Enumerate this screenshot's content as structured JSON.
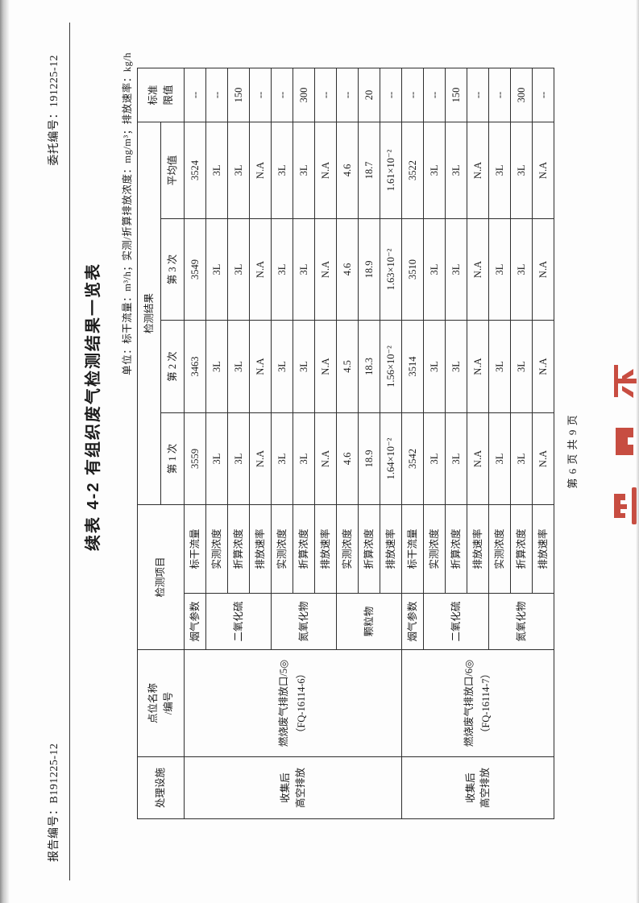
{
  "page": {
    "report_no": "报告编号：B191225-12",
    "client_no": "委托编号：191225-12",
    "title": "续表 4-2  有组织废气检测结果一览表",
    "unit_line": "单位：标干流量：m³/h；实测/折算排放浓度：mg/m³；排放速率：kg/h",
    "footer": "第 6 页 共 9 页",
    "stamp_color": "#c23a2d"
  },
  "table": {
    "header": {
      "facility": "处理设施",
      "point": "点位名称\n/编号",
      "item": "检测项目",
      "result": "检测结果",
      "runs": [
        "第 1 次",
        "第 2 次",
        "第 3 次",
        "平均值"
      ],
      "limit": "标准\n限值"
    },
    "points": [
      {
        "facility": "收集后\n高空排放",
        "name": "燃烧废气排放口/5◎\n（FQ-16114-6）",
        "groups": [
          {
            "name": "烟气参数",
            "rows": [
              {
                "metric": "标干流量",
                "values": [
                  "3559",
                  "3463",
                  "3549",
                  "3524"
                ],
                "limit": "--"
              }
            ]
          },
          {
            "name": "二氧化硫",
            "rows": [
              {
                "metric": "实测浓度",
                "values": [
                  "3L",
                  "3L",
                  "3L",
                  "3L"
                ],
                "limit": "--"
              },
              {
                "metric": "折算浓度",
                "values": [
                  "3L",
                  "3L",
                  "3L",
                  "3L"
                ],
                "limit": "150"
              },
              {
                "metric": "排放速率",
                "values": [
                  "N.A",
                  "N.A",
                  "N.A",
                  "N.A"
                ],
                "limit": "--"
              }
            ]
          },
          {
            "name": "氮氧化物",
            "rows": [
              {
                "metric": "实测浓度",
                "values": [
                  "3L",
                  "3L",
                  "3L",
                  "3L"
                ],
                "limit": "--"
              },
              {
                "metric": "折算浓度",
                "values": [
                  "3L",
                  "3L",
                  "3L",
                  "3L"
                ],
                "limit": "300"
              },
              {
                "metric": "排放速率",
                "values": [
                  "N.A",
                  "N.A",
                  "N.A",
                  "N.A"
                ],
                "limit": "--"
              }
            ]
          },
          {
            "name": "颗粒物",
            "rows": [
              {
                "metric": "实测浓度",
                "values": [
                  "4.6",
                  "4.5",
                  "4.6",
                  "4.6"
                ],
                "limit": "--"
              },
              {
                "metric": "折算浓度",
                "values": [
                  "18.9",
                  "18.3",
                  "18.9",
                  "18.7"
                ],
                "limit": "20"
              },
              {
                "metric": "排放速率",
                "values": [
                  "1.64×10⁻²",
                  "1.56×10⁻²",
                  "1.63×10⁻²",
                  "1.61×10⁻²"
                ],
                "limit": "--"
              }
            ]
          }
        ]
      },
      {
        "facility": "收集后\n高空排放",
        "name": "燃烧废气排放口/6◎\n（FQ-16114-7）",
        "groups": [
          {
            "name": "烟气参数",
            "rows": [
              {
                "metric": "标干流量",
                "values": [
                  "3542",
                  "3514",
                  "3510",
                  "3522"
                ],
                "limit": "--"
              }
            ]
          },
          {
            "name": "二氧化硫",
            "rows": [
              {
                "metric": "实测浓度",
                "values": [
                  "3L",
                  "3L",
                  "3L",
                  "3L"
                ],
                "limit": "--"
              },
              {
                "metric": "折算浓度",
                "values": [
                  "3L",
                  "3L",
                  "3L",
                  "3L"
                ],
                "limit": "150"
              },
              {
                "metric": "排放速率",
                "values": [
                  "N.A",
                  "N.A",
                  "N.A",
                  "N.A"
                ],
                "limit": "--"
              }
            ]
          },
          {
            "name": "氮氧化物",
            "rows": [
              {
                "metric": "实测浓度",
                "values": [
                  "3L",
                  "3L",
                  "3L",
                  "3L"
                ],
                "limit": "--"
              },
              {
                "metric": "折算浓度",
                "values": [
                  "3L",
                  "3L",
                  "3L",
                  "3L"
                ],
                "limit": "300"
              },
              {
                "metric": "排放速率",
                "values": [
                  "N.A",
                  "N.A",
                  "N.A",
                  "N.A"
                ],
                "limit": "--"
              }
            ]
          }
        ]
      }
    ]
  }
}
